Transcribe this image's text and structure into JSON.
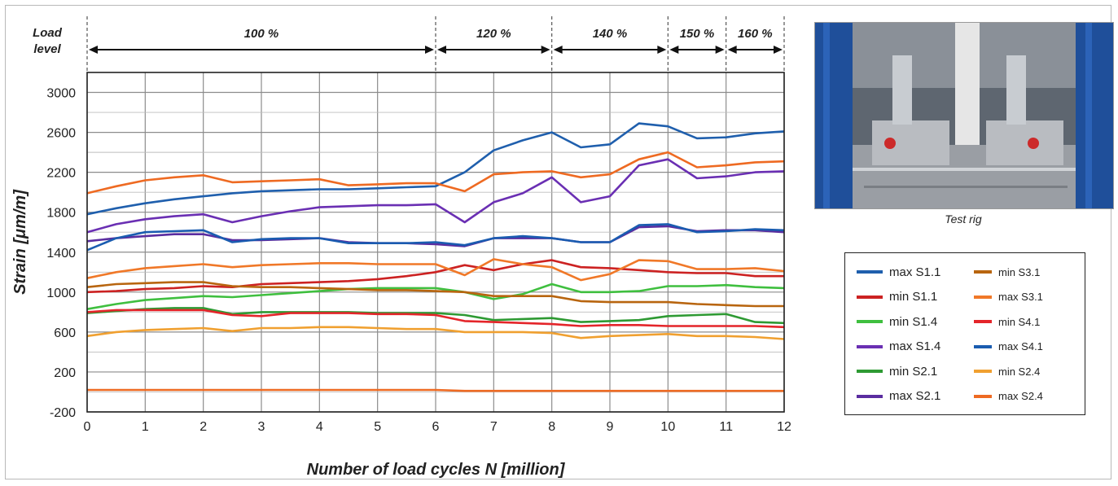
{
  "chart_data": {
    "type": "line",
    "xlabel": "Number of load cycles N [million]",
    "ylabel": "Strain [μm/m]",
    "xlim": [
      0,
      12
    ],
    "ylim": [
      -200,
      3200
    ],
    "x_ticks": [
      "0",
      "1",
      "2",
      "3",
      "4",
      "5",
      "6",
      "7",
      "8",
      "9",
      "10",
      "11",
      "12"
    ],
    "y_ticks": [
      "-200",
      "200",
      "600",
      "1000",
      "1400",
      "1800",
      "2200",
      "2600",
      "3000"
    ],
    "grid": true,
    "legend_position": "right",
    "load_level_label": "Load level",
    "load_levels": [
      {
        "label": "100 %",
        "from": 0,
        "to": 6
      },
      {
        "label": "120 %",
        "from": 6,
        "to": 8
      },
      {
        "label": "140 %",
        "from": 8,
        "to": 10
      },
      {
        "label": "150 %",
        "from": 10,
        "to": 11
      },
      {
        "label": "160 %",
        "from": 11,
        "to": 12
      }
    ],
    "x": [
      0,
      0.5,
      1,
      1.5,
      2,
      2.5,
      3,
      3.5,
      4,
      4.5,
      5,
      5.5,
      6,
      6.5,
      7,
      7.5,
      8,
      8.5,
      9,
      9.5,
      10,
      10.5,
      11,
      11.5,
      12
    ],
    "series": [
      {
        "name": "max S1.1",
        "color": "#1f5fad",
        "values": [
          1780,
          1840,
          1890,
          1930,
          1960,
          1990,
          2010,
          2020,
          2030,
          2030,
          2040,
          2050,
          2060,
          2200,
          2420,
          2520,
          2600,
          2450,
          2480,
          2690,
          2660,
          2540,
          2550,
          2590,
          2610
        ]
      },
      {
        "name": "min S1.1",
        "color": "#cc2222",
        "values": [
          1000,
          1010,
          1030,
          1040,
          1060,
          1050,
          1080,
          1090,
          1100,
          1110,
          1130,
          1160,
          1200,
          1270,
          1220,
          1280,
          1320,
          1250,
          1240,
          1220,
          1200,
          1190,
          1190,
          1160,
          1160
        ]
      },
      {
        "name": "min S1.4",
        "color": "#3fbf3f",
        "values": [
          830,
          880,
          920,
          940,
          960,
          950,
          970,
          990,
          1010,
          1030,
          1040,
          1040,
          1040,
          1000,
          930,
          980,
          1080,
          1000,
          1000,
          1010,
          1060,
          1060,
          1070,
          1050,
          1040
        ]
      },
      {
        "name": "max S1.4",
        "color": "#6a2fb3",
        "values": [
          1600,
          1680,
          1730,
          1760,
          1780,
          1700,
          1760,
          1810,
          1850,
          1860,
          1870,
          1870,
          1880,
          1700,
          1900,
          1990,
          2150,
          1900,
          1960,
          2270,
          2330,
          2140,
          2160,
          2200,
          2210
        ]
      },
      {
        "name": "min S2.1",
        "color": "#2e9a33",
        "values": [
          790,
          810,
          830,
          840,
          840,
          780,
          800,
          800,
          800,
          800,
          790,
          790,
          790,
          770,
          720,
          730,
          740,
          700,
          710,
          720,
          760,
          770,
          780,
          700,
          690
        ]
      },
      {
        "name": "max S2.1",
        "color": "#5a2da0",
        "values": [
          1510,
          1540,
          1560,
          1580,
          1580,
          1520,
          1520,
          1530,
          1540,
          1500,
          1490,
          1490,
          1480,
          1460,
          1540,
          1540,
          1540,
          1500,
          1500,
          1650,
          1660,
          1610,
          1620,
          1620,
          1600
        ]
      },
      {
        "name": "min S3.1",
        "color": "#b8650f",
        "values": [
          1050,
          1080,
          1090,
          1100,
          1100,
          1060,
          1050,
          1050,
          1040,
          1030,
          1020,
          1020,
          1010,
          1000,
          960,
          960,
          960,
          910,
          900,
          900,
          900,
          880,
          870,
          860,
          860
        ]
      },
      {
        "name": "max S3.1",
        "color": "#f07828",
        "values": [
          1140,
          1200,
          1240,
          1260,
          1280,
          1250,
          1270,
          1280,
          1290,
          1290,
          1280,
          1280,
          1280,
          1170,
          1330,
          1280,
          1250,
          1120,
          1180,
          1320,
          1310,
          1230,
          1230,
          1240,
          1210
        ]
      },
      {
        "name": "min S4.1",
        "color": "#e4252a",
        "values": [
          800,
          820,
          820,
          820,
          820,
          770,
          760,
          790,
          790,
          790,
          780,
          780,
          770,
          710,
          700,
          690,
          680,
          660,
          670,
          670,
          660,
          660,
          660,
          660,
          650
        ]
      },
      {
        "name": "max S4.1",
        "color": "#1a5cb0",
        "values": [
          1420,
          1540,
          1600,
          1610,
          1620,
          1500,
          1530,
          1540,
          1540,
          1490,
          1490,
          1490,
          1500,
          1470,
          1540,
          1560,
          1540,
          1500,
          1500,
          1670,
          1680,
          1600,
          1610,
          1630,
          1620
        ]
      },
      {
        "name": "min S2.4",
        "color": "#f0a030",
        "values": [
          560,
          600,
          620,
          630,
          640,
          610,
          640,
          640,
          650,
          650,
          640,
          630,
          630,
          600,
          600,
          600,
          590,
          540,
          560,
          570,
          580,
          560,
          560,
          550,
          530
        ]
      },
      {
        "name": "max S2.4",
        "color": "#ee6a22",
        "values": [
          1990,
          2060,
          2120,
          2150,
          2170,
          2100,
          2110,
          2120,
          2130,
          2070,
          2080,
          2090,
          2090,
          2010,
          2180,
          2200,
          2210,
          2150,
          2180,
          2330,
          2400,
          2250,
          2270,
          2300,
          2310
        ]
      },
      {
        "name": "",
        "color": "#ee6a22",
        "values": [
          20,
          20,
          20,
          20,
          20,
          20,
          20,
          20,
          20,
          20,
          20,
          20,
          20,
          10,
          10,
          10,
          10,
          10,
          10,
          10,
          10,
          10,
          10,
          10,
          10
        ]
      }
    ]
  },
  "photo": {
    "caption": "Test rig"
  },
  "legend": {
    "col1": [
      "max S1.1",
      "min S1.1",
      "min S1.4",
      "max S1.4",
      "min S2.1",
      "max S2.1"
    ],
    "col2": [
      "min S3.1",
      "max S3.1",
      "min S4.1",
      "max S4.1",
      "min S2.4",
      "max S2.4"
    ]
  }
}
